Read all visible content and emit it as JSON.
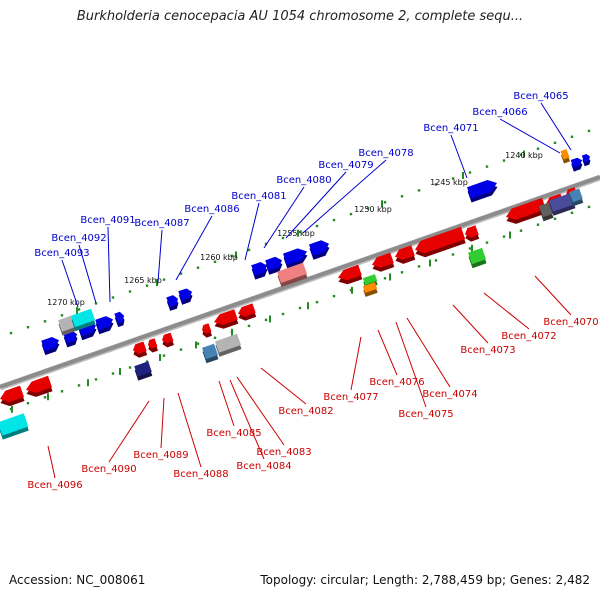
{
  "title": "Burkholderia cenocepacia AU 1054 chromosome 2, complete sequ...",
  "footer": {
    "accession": "Accession: NC_008061",
    "info": "Topology: circular; Length: 2,788,459 bp; Genes: 2,482"
  },
  "scale_ticks": [
    "1240 kbp",
    "1245 kbp",
    "1250 kbp",
    "1255 kbp",
    "1260 kbp",
    "1265 kbp",
    "1270 kbp"
  ],
  "forward_labels": [
    "Bcen_4065",
    "Bcen_4066",
    "Bcen_4071",
    "Bcen_4078",
    "Bcen_4079",
    "Bcen_4080",
    "Bcen_4081",
    "Bcen_4086",
    "Bcen_4087",
    "Bcen_4091",
    "Bcen_4092",
    "Bcen_4093"
  ],
  "reverse_labels": [
    "Bcen_4070",
    "Bcen_4072",
    "Bcen_4073",
    "Bcen_4074",
    "Bcen_4075",
    "Bcen_4076",
    "Bcen_4077",
    "Bcen_4082",
    "Bcen_4083",
    "Bcen_4084",
    "Bcen_4085",
    "Bcen_4088",
    "Bcen_4089",
    "Bcen_4090",
    "Bcen_4096"
  ],
  "colors": {
    "forward": "#0000e6",
    "reverse": "#e60000",
    "backbone": "#8c8c8c",
    "dots": "#228b22",
    "label_forward": "#0000cc",
    "label_reverse": "#cc0000",
    "cyan": "#00e5e5",
    "grey": "#b4b4b4",
    "pink": "#f08080",
    "orange": "#ff8c00",
    "green": "#32cd32",
    "steel": "#4682b4",
    "navy": "#202080"
  }
}
